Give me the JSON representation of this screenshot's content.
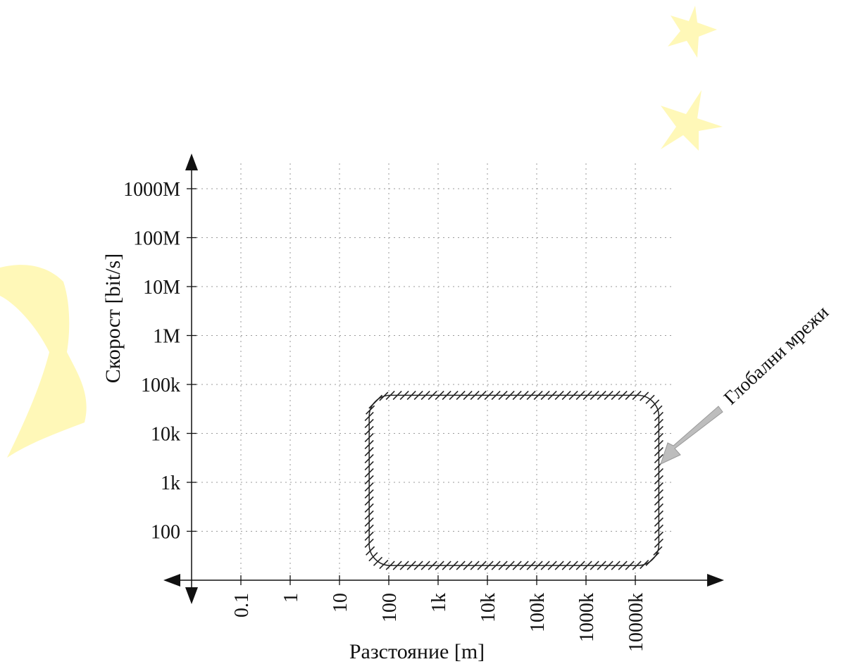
{
  "colors": {
    "decoration": "#fff8b8",
    "arrow": "#bdbdbd",
    "axis": "#111111"
  },
  "chart_data": {
    "type": "scatter",
    "title": "",
    "xlabel": "Разстояние [m]",
    "ylabel": "Скорост [bit/s]",
    "x_scale": "log",
    "y_scale": "log",
    "xlim": [
      0.01,
      10000000000
    ],
    "ylim": [
      10,
      10000000000
    ],
    "grid": true,
    "x_ticks": [
      {
        "value": 0.1,
        "label": "0.1"
      },
      {
        "value": 1,
        "label": "1"
      },
      {
        "value": 10,
        "label": "10"
      },
      {
        "value": 100,
        "label": "100"
      },
      {
        "value": 1000,
        "label": "1k"
      },
      {
        "value": 10000,
        "label": "10k"
      },
      {
        "value": 100000,
        "label": "100k"
      },
      {
        "value": 1000000,
        "label": "1000k"
      },
      {
        "value": 10000000,
        "label": "10000k"
      }
    ],
    "y_ticks": [
      {
        "value": 100,
        "label": "100"
      },
      {
        "value": 1000,
        "label": "1k"
      },
      {
        "value": 10000,
        "label": "10k"
      },
      {
        "value": 100000,
        "label": "100k"
      },
      {
        "value": 1000000,
        "label": "1M"
      },
      {
        "value": 10000000,
        "label": "10M"
      },
      {
        "value": 100000000,
        "label": "100M"
      },
      {
        "value": 1000000000,
        "label": "1000M"
      }
    ],
    "regions": [
      {
        "label": "Глобални мрежи",
        "x_range": [
          40,
          30000000
        ],
        "y_range": [
          20,
          60000
        ]
      }
    ],
    "annotations": [
      {
        "text": "Глобални мрежи",
        "points_to": [
          30000000,
          2000
        ]
      }
    ]
  }
}
